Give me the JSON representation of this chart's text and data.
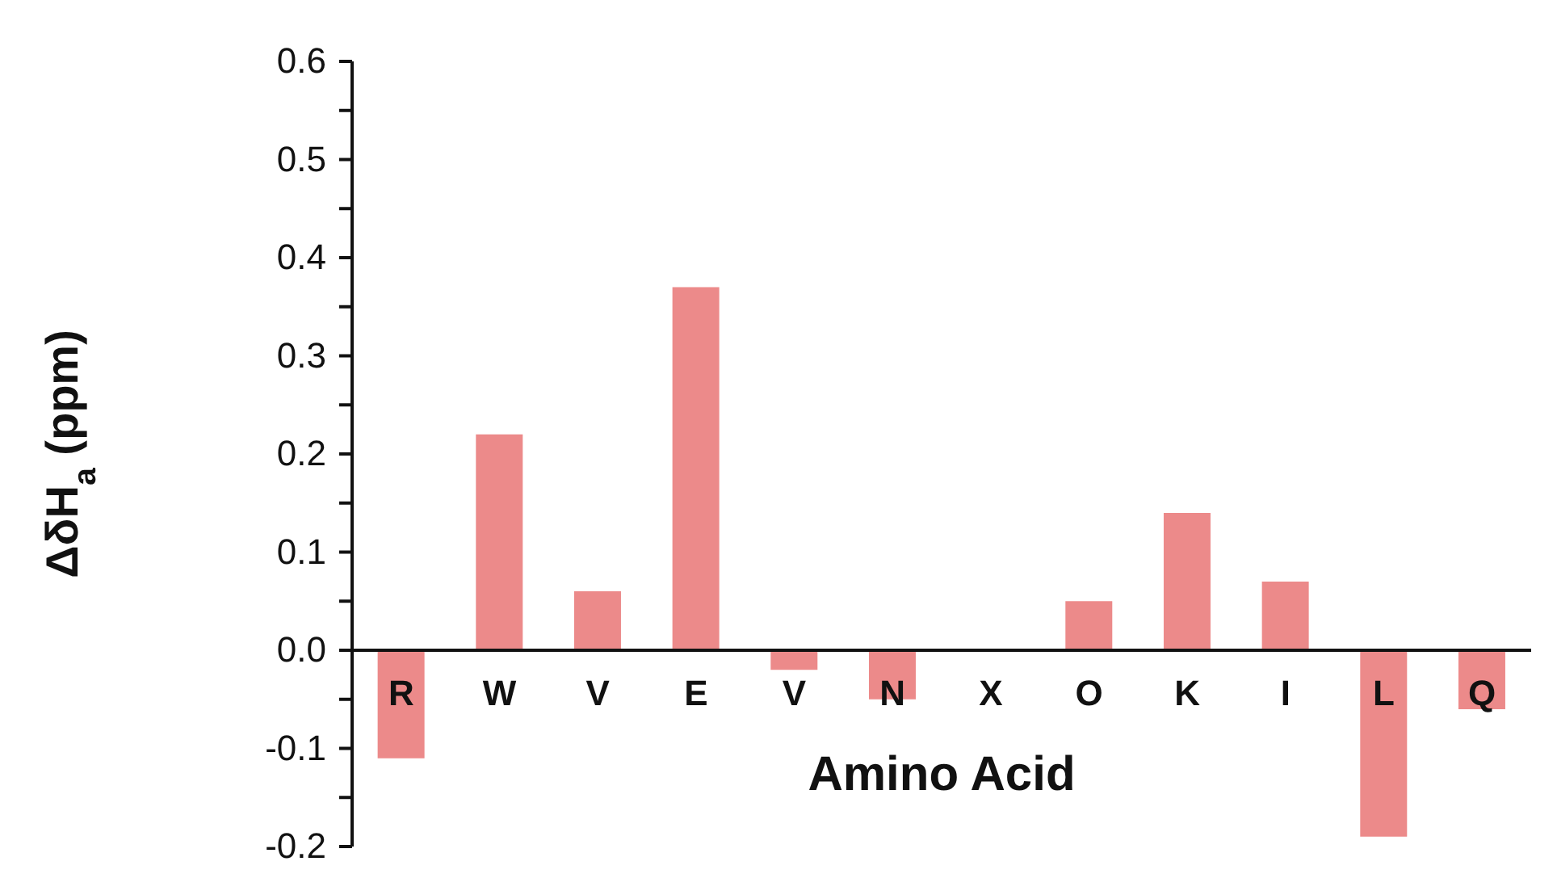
{
  "chart_data": {
    "type": "bar",
    "xlabel": "Amino Acid",
    "ylabel": "ΔδH$_{a}$ (ppm)",
    "categories": [
      "R",
      "W",
      "V",
      "E",
      "V",
      "N",
      "X",
      "O",
      "K",
      "I",
      "L",
      "Q"
    ],
    "values": [
      -0.11,
      0.22,
      0.06,
      0.37,
      -0.02,
      -0.05,
      0,
      0.05,
      0.14,
      0.07,
      -0.19,
      -0.06
    ],
    "color": "#ec8a8a",
    "ylim": [
      -0.2,
      0.6
    ],
    "yticks": [
      {
        "value": -0.2,
        "label": "-0.2"
      },
      {
        "value": -0.15,
        "label": null
      },
      {
        "value": -0.1,
        "label": "-0.1"
      },
      {
        "value": -0.05,
        "label": null
      },
      {
        "value": 0,
        "label": "0.0"
      },
      {
        "value": 0.05,
        "label": null
      },
      {
        "value": 0.1,
        "label": "0.1"
      },
      {
        "value": 0.15,
        "label": null
      },
      {
        "value": 0.2,
        "label": "0.2"
      },
      {
        "value": 0.25,
        "label": null
      },
      {
        "value": 0.3,
        "label": "0.3"
      },
      {
        "value": 0.35,
        "label": null
      },
      {
        "value": 0.4,
        "label": "0.4"
      },
      {
        "value": 0.45,
        "label": null
      },
      {
        "value": 0.5,
        "label": "0.5"
      },
      {
        "value": 0.55,
        "label": null
      },
      {
        "value": 0.6,
        "label": "0.6"
      }
    ],
    "grid": false,
    "legend": false
  }
}
